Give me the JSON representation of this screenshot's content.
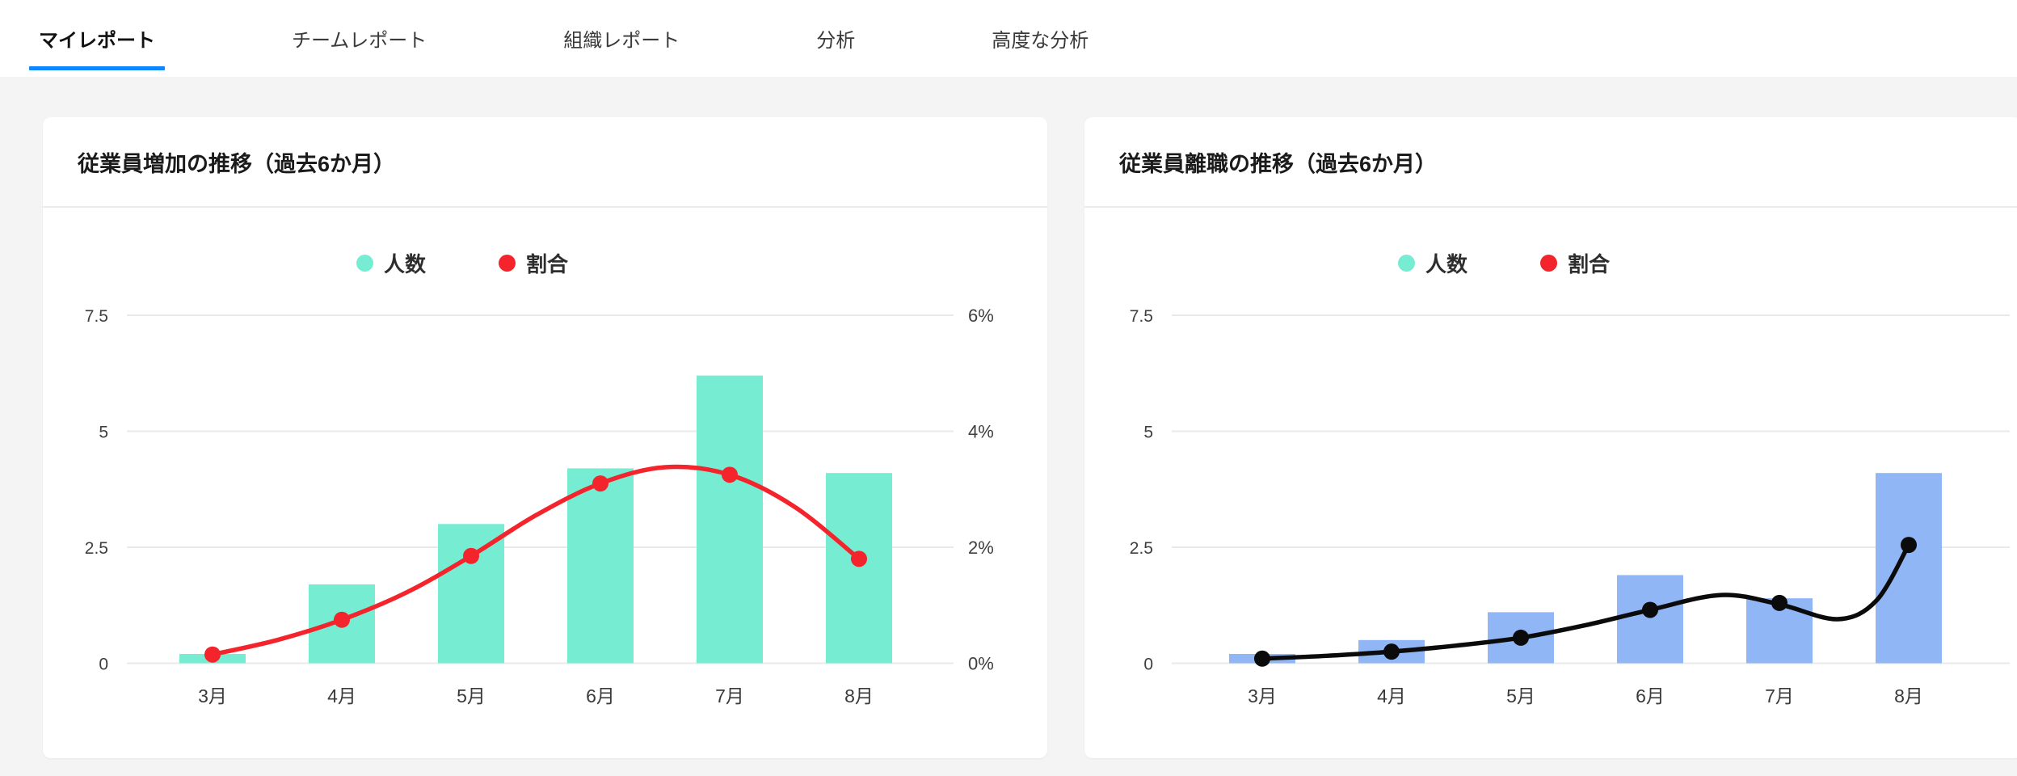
{
  "colors": {
    "page_background": "#f4f4f5",
    "card_background": "#ffffff",
    "accent_blue": "#0d87ff",
    "grid_line": "#e9e9e9",
    "axis_text": "#3e3e3e",
    "month_text": "#3a3a3a",
    "title_text": "#1b1b1b",
    "tab_text": "#3a3a3a",
    "tab_active_text": "#111111",
    "legend_text": "#2d2d2d",
    "divider": "#ededed"
  },
  "tab_bar": {
    "active_color": "#0d87ff",
    "tabs": [
      {
        "label": "マイレポート",
        "active": true
      },
      {
        "label": "チームレポート",
        "active": false
      },
      {
        "label": "組織レポート",
        "active": false
      },
      {
        "label": "分析",
        "active": false
      },
      {
        "label": "高度な分析",
        "active": false
      }
    ]
  },
  "chart_data": [
    {
      "type": "bar+line",
      "title": "従業員増加の推移（過去6か月）",
      "categories": [
        "3月",
        "4月",
        "5月",
        "6月",
        "7月",
        "8月"
      ],
      "left_axis": {
        "tick_labels": [
          "0",
          "2.5",
          "5",
          "7.5"
        ],
        "max": 7.5
      },
      "right_axis": {
        "tick_labels": [
          "0%",
          "2%",
          "4%",
          "6%"
        ],
        "max": 6
      },
      "legend_position": "top",
      "grid": true,
      "series": [
        {
          "name": "人数",
          "kind": "bar",
          "axis": "left",
          "color": "#76EDD3",
          "legend_color": "#76EDD3",
          "values": [
            0.2,
            1.7,
            3,
            4.2,
            6.2,
            4.1
          ]
        },
        {
          "name": "割合",
          "kind": "line",
          "axis": "right",
          "unit": "%",
          "color": "#F3242B",
          "legend_color": "#F3242B",
          "values": [
            0.15,
            0.75,
            1.85,
            3.1,
            3.25,
            1.8
          ],
          "curve_points": [
            [
              0,
              0.15
            ],
            [
              0.5,
              0.4
            ],
            [
              1,
              0.75
            ],
            [
              1.5,
              1.22
            ],
            [
              2,
              1.85
            ],
            [
              2.5,
              2.55
            ],
            [
              3,
              3.1
            ],
            [
              3.5,
              3.38
            ],
            [
              4,
              3.25
            ],
            [
              4.5,
              2.7
            ],
            [
              5,
              1.8
            ]
          ]
        }
      ]
    },
    {
      "type": "bar+line",
      "title": "従業員離職の推移（過去6か月）",
      "categories": [
        "3月",
        "4月",
        "5月",
        "6月",
        "7月",
        "8月"
      ],
      "left_axis": {
        "tick_labels": [
          "0",
          "2.5",
          "5",
          "7.5"
        ],
        "max": 7.5
      },
      "right_axis": null,
      "legend_position": "top",
      "grid": true,
      "series": [
        {
          "name": "人数",
          "kind": "bar",
          "axis": "left",
          "color": "#91B6F6",
          "legend_color": "#76EDD3",
          "values": [
            0.2,
            0.5,
            1.1,
            1.9,
            1.4,
            4.1
          ]
        },
        {
          "name": "割合",
          "kind": "line",
          "axis": "left",
          "color": "#0b0b0b",
          "legend_color": "#F3242B",
          "values": [
            0.1,
            0.25,
            0.55,
            1.15,
            1.3,
            2.55
          ],
          "curve_points": [
            [
              0,
              0.1
            ],
            [
              0.5,
              0.16
            ],
            [
              1,
              0.25
            ],
            [
              1.5,
              0.38
            ],
            [
              2,
              0.55
            ],
            [
              2.5,
              0.82
            ],
            [
              3,
              1.15
            ],
            [
              3.55,
              1.47
            ],
            [
              4,
              1.27
            ],
            [
              4.45,
              0.95
            ],
            [
              4.75,
              1.35
            ],
            [
              5,
              2.55
            ]
          ]
        }
      ]
    }
  ]
}
